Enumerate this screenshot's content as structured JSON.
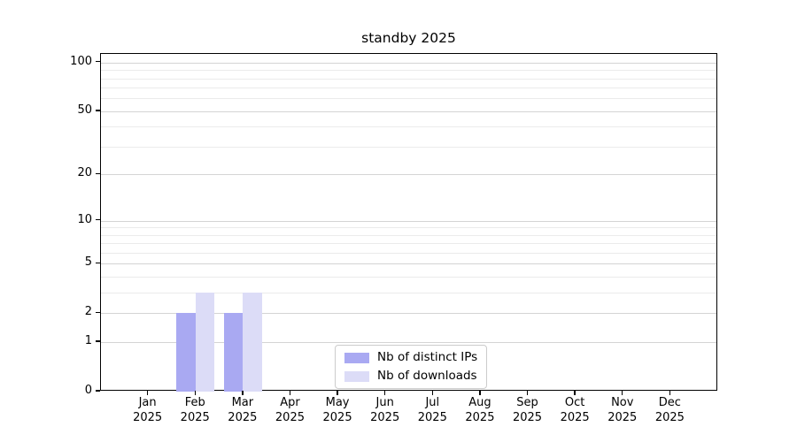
{
  "chart_data": {
    "type": "bar",
    "title": "standby 2025",
    "categories": [
      "Jan 2025",
      "Feb 2025",
      "Mar 2025",
      "Apr 2025",
      "May 2025",
      "Jun 2025",
      "Jul 2025",
      "Aug 2025",
      "Sep 2025",
      "Oct 2025",
      "Nov 2025",
      "Dec 2025"
    ],
    "series": [
      {
        "name": "Nb of distinct IPs",
        "color": "#a9a9f2",
        "values": [
          0,
          2,
          2,
          0,
          0,
          0,
          0,
          0,
          0,
          0,
          0,
          0
        ]
      },
      {
        "name": "Nb of downloads",
        "color": "#dcdcf7",
        "values": [
          0,
          3,
          3,
          0,
          0,
          0,
          0,
          0,
          0,
          0,
          0,
          0
        ]
      }
    ],
    "xlabel": "",
    "ylabel": "",
    "yscale": "log1p",
    "ylim": [
      0,
      113
    ],
    "y_major_ticks": [
      0,
      1,
      2,
      5,
      10,
      20,
      50,
      100
    ],
    "y_minor_ticks": [
      3,
      4,
      6,
      7,
      8,
      9,
      30,
      40,
      60,
      70,
      80,
      90
    ],
    "grid": true,
    "legend_position": "lower center"
  },
  "colors": {
    "background": "#ffffff",
    "axis": "#000000",
    "grid_major": "#d4d4d4",
    "grid_minor": "#ebebeb",
    "legend_border": "#cccccc",
    "bar_distinct_ips": "#a9a9f2",
    "bar_downloads": "#dcdcf7"
  }
}
